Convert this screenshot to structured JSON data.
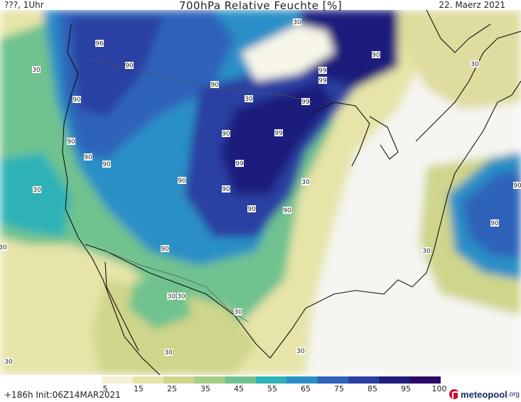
{
  "header": {
    "left": "???, 1Uhr",
    "title": "700hPa Relative Feuchte [%]",
    "date": "22. Maerz 2021"
  },
  "footer": {
    "run_info": "+186h  Init:06Z14MAR2021",
    "logo_name": "meteopool",
    "logo_tld": ".org"
  },
  "legend": {
    "ticks": [
      "5",
      "15",
      "25",
      "35",
      "45",
      "55",
      "65",
      "75",
      "85",
      "95",
      "100"
    ],
    "colors": [
      "#ffffff",
      "#f4f1d4",
      "#e6e4a8",
      "#cfd58a",
      "#a6cf83",
      "#6fc28f",
      "#2fb2b8",
      "#2b8fc6",
      "#2f63b9",
      "#2c3fa2",
      "#1e1d7c",
      "#2a0a66"
    ]
  },
  "contour_labels": [
    "90",
    "90",
    "90",
    "90",
    "90",
    "90",
    "90",
    "90",
    "90",
    "90",
    "90",
    "90",
    "90",
    "90",
    "90",
    "99",
    "99",
    "99",
    "99",
    "99",
    "96",
    "30",
    "30",
    "30",
    "30",
    "30",
    "30",
    "30",
    "30",
    "30",
    "30",
    "30",
    "30",
    "30",
    "30"
  ]
}
